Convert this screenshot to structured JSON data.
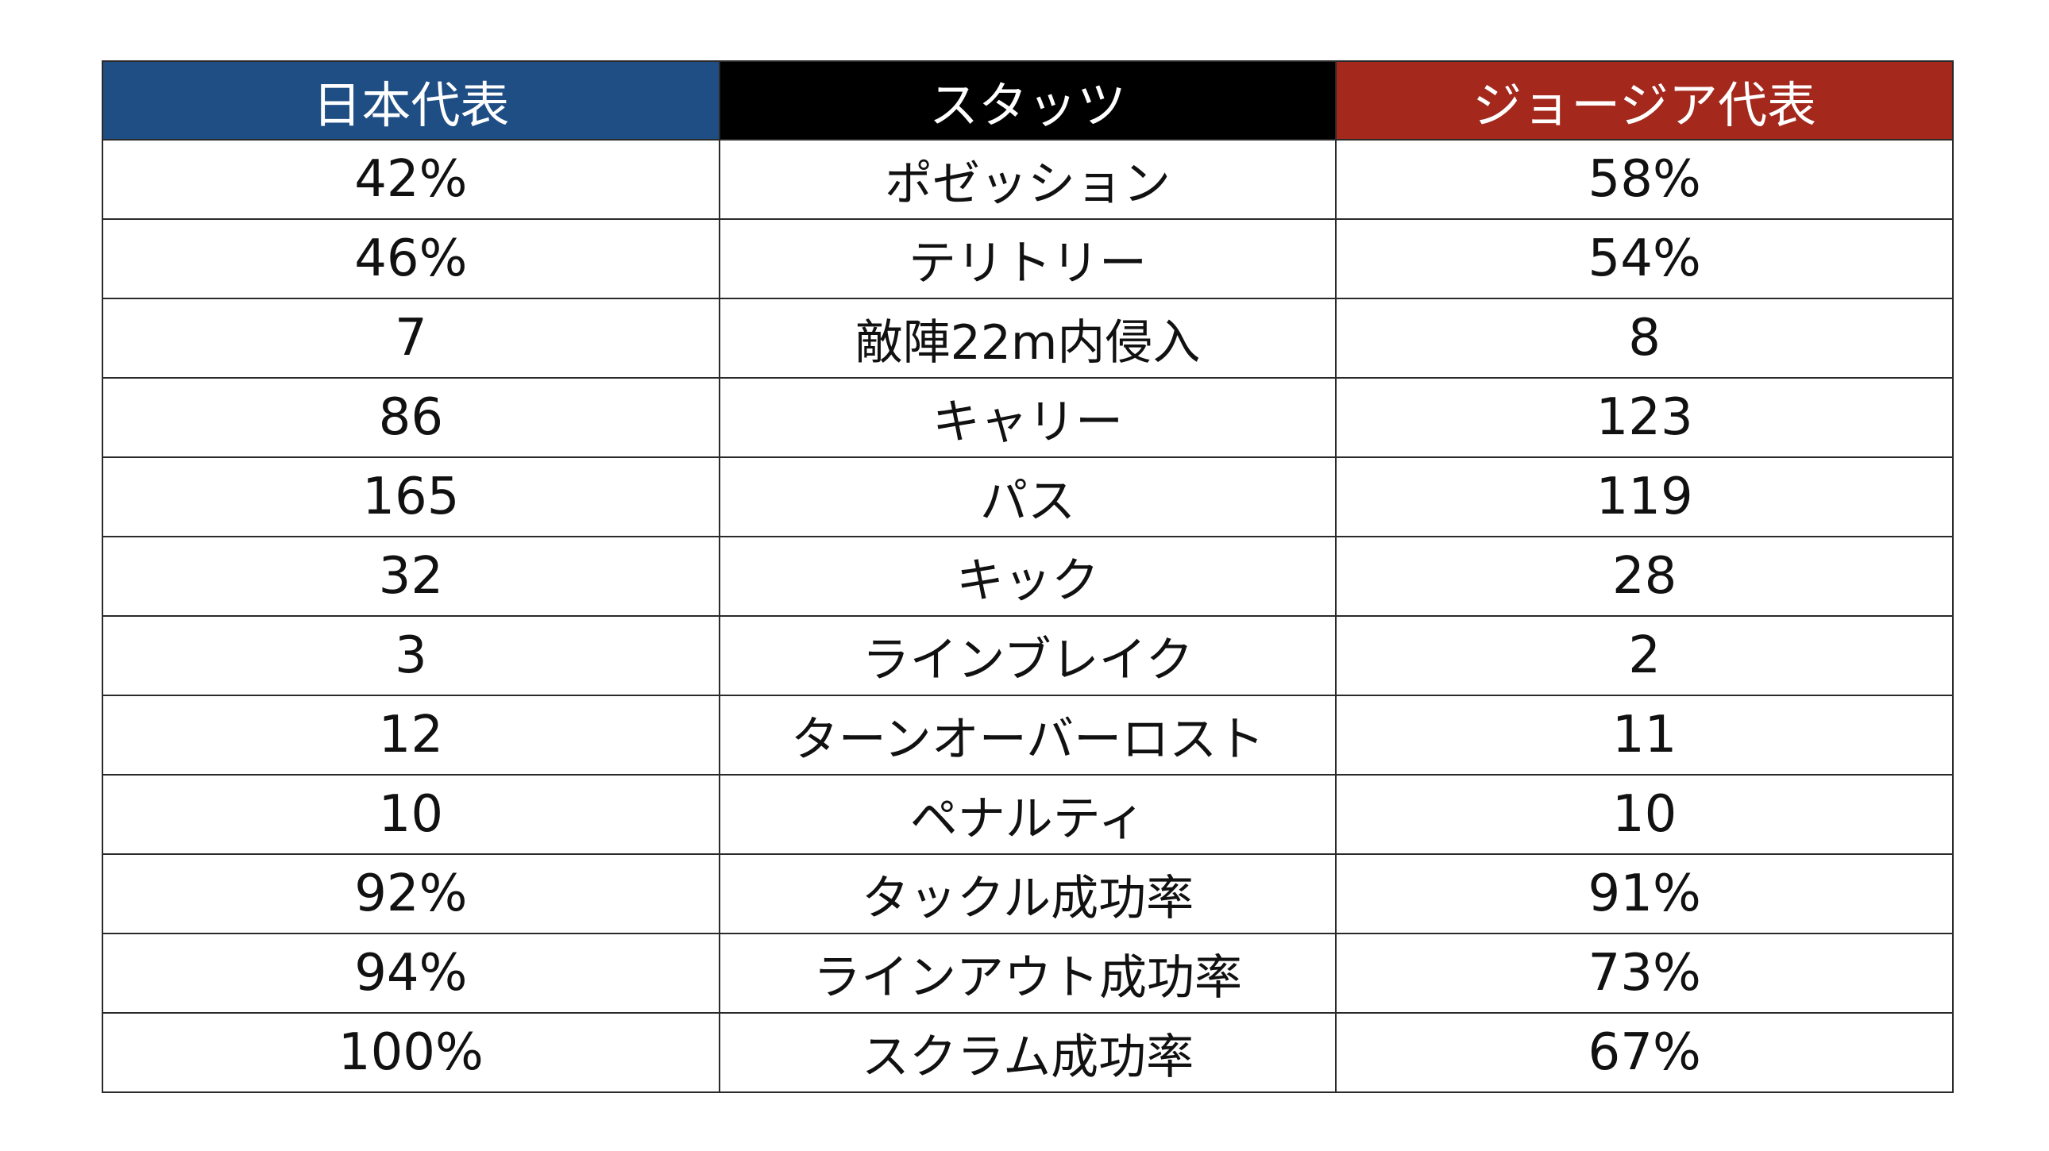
{
  "header": {
    "japan": "日本代表",
    "stats": "スタッツ",
    "georgia": "ジョージア代表",
    "colors": {
      "japan": "#1f4e84",
      "stats": "#000000",
      "georgia": "#a4281c"
    }
  },
  "rows": [
    {
      "japan": "42%",
      "stat": "ポゼッション",
      "georgia": "58%"
    },
    {
      "japan": "46%",
      "stat": "テリトリー",
      "georgia": "54%"
    },
    {
      "japan": "7",
      "stat": "敵陣22m内侵入",
      "georgia": "8"
    },
    {
      "japan": "86",
      "stat": "キャリー",
      "georgia": "123"
    },
    {
      "japan": "165",
      "stat": "パス",
      "georgia": "119"
    },
    {
      "japan": "32",
      "stat": "キック",
      "georgia": "28"
    },
    {
      "japan": "3",
      "stat": "ラインブレイク",
      "georgia": "2"
    },
    {
      "japan": "12",
      "stat": "ターンオーバーロスト",
      "georgia": "11"
    },
    {
      "japan": "10",
      "stat": "ペナルティ",
      "georgia": "10"
    },
    {
      "japan": "92%",
      "stat": "タックル成功率",
      "georgia": "91%"
    },
    {
      "japan": "94%",
      "stat": "ラインアウト成功率",
      "georgia": "73%"
    },
    {
      "japan": "100%",
      "stat": "スクラム成功率",
      "georgia": "67%"
    }
  ]
}
